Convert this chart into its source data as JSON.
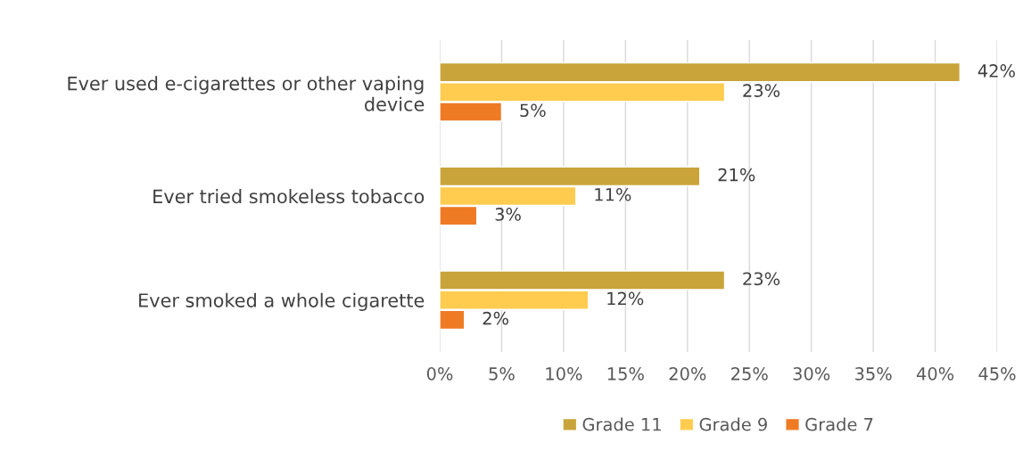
{
  "chart_data": {
    "type": "bar",
    "orientation": "horizontal",
    "categories": [
      "Ever used e-cigarettes or other vaping device",
      "Ever tried smokeless tobacco",
      "Ever smoked a whole cigarette"
    ],
    "series": [
      {
        "name": "Grade 11",
        "color": "#c9a43a",
        "values": [
          42,
          21,
          23
        ],
        "value_labels": [
          "42%",
          "21%",
          "23%"
        ]
      },
      {
        "name": "Grade 9",
        "color": "#ffcc4f",
        "values": [
          23,
          11,
          12
        ],
        "value_labels": [
          "23%",
          "11%",
          "12%"
        ]
      },
      {
        "name": "Grade 7",
        "color": "#ee7a24",
        "values": [
          5,
          3,
          2
        ],
        "value_labels": [
          "5%",
          "3%",
          "2%"
        ]
      }
    ],
    "xlim": [
      0,
      45
    ],
    "xticks": [
      {
        "value": 0,
        "label": "0%"
      },
      {
        "value": 5,
        "label": "5%"
      },
      {
        "value": 10,
        "label": "10%"
      },
      {
        "value": 15,
        "label": "15%"
      },
      {
        "value": 20,
        "label": "20%"
      },
      {
        "value": 25,
        "label": "25%"
      },
      {
        "value": 30,
        "label": "30%"
      },
      {
        "value": 35,
        "label": "35%"
      },
      {
        "value": 40,
        "label": "40%"
      },
      {
        "value": 45,
        "label": "45%"
      }
    ],
    "grid": "x",
    "legend": "bottom"
  }
}
